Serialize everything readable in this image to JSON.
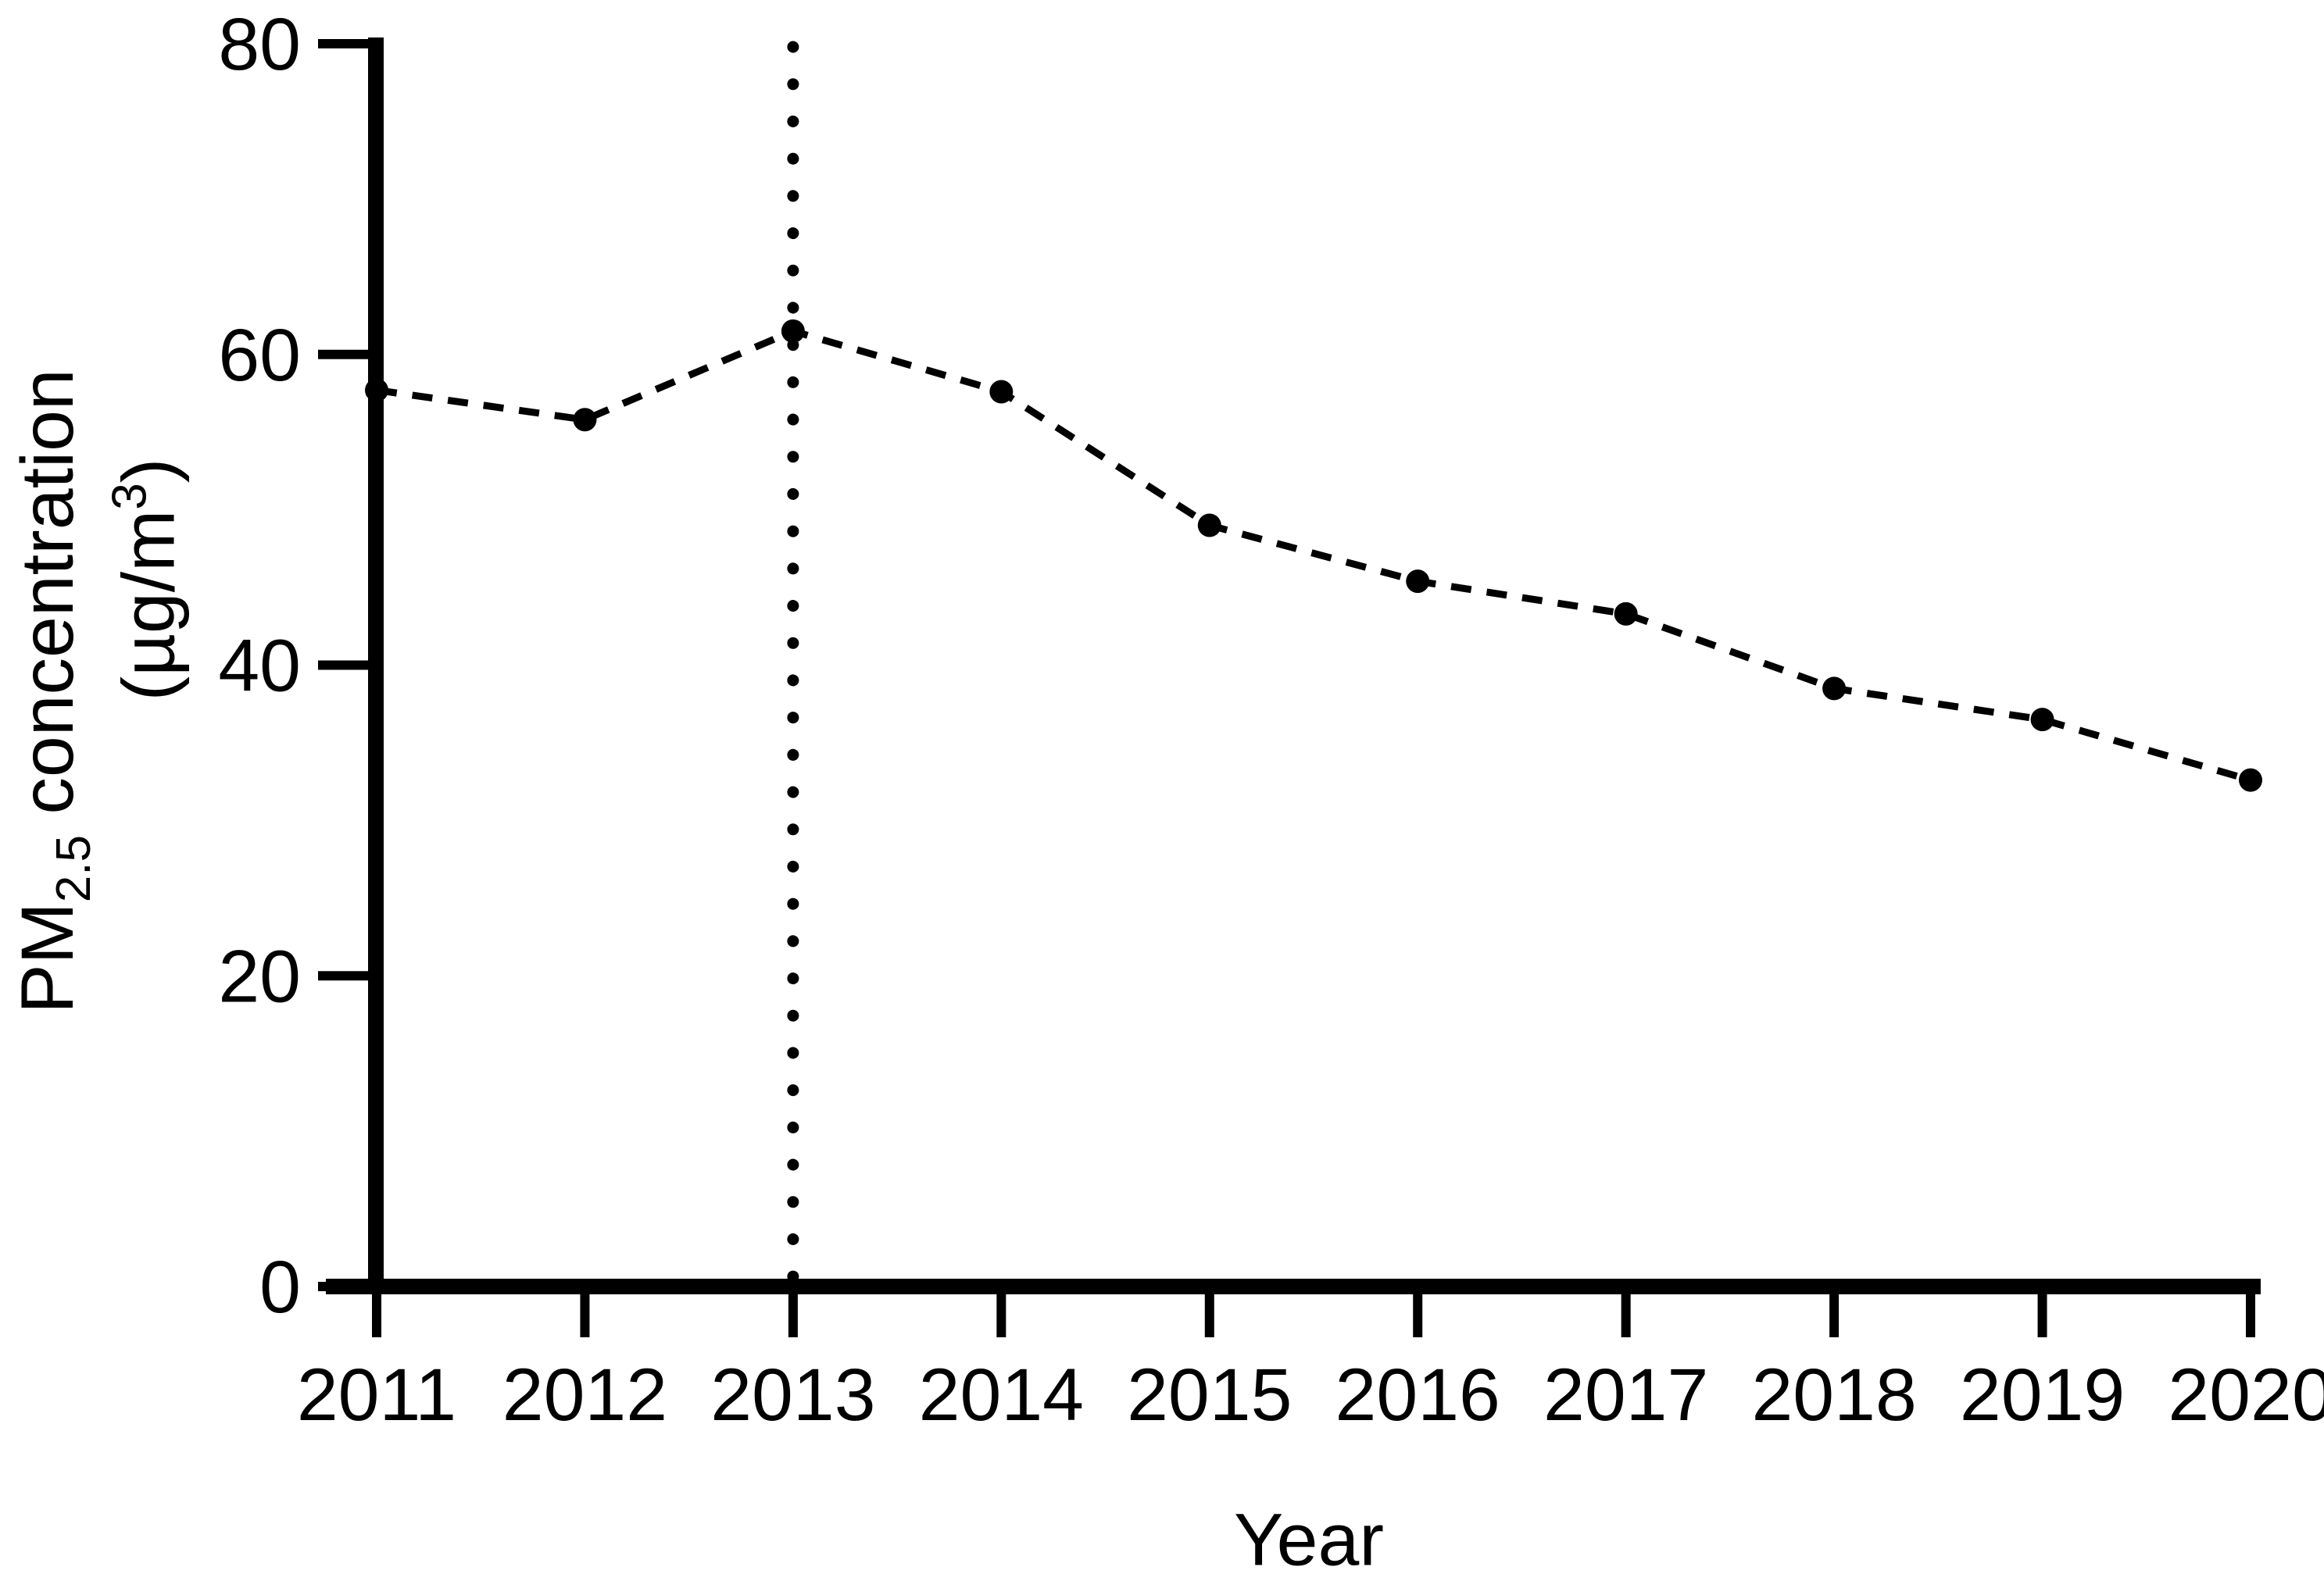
{
  "background": "#ffffff",
  "ink_color": "#000000",
  "x_axis_title": "Year",
  "y_axis_title": {
    "prefix": "PM",
    "sub": "2.5",
    "suffix": " concentration"
  },
  "y_axis_unit": {
    "prefix": "(µg/m",
    "sup": "3",
    "suffix": ")"
  },
  "chart_data": {
    "type": "line",
    "title": "",
    "xlabel": "Year",
    "ylabel": "PM2.5 concentration (µg/m³)",
    "categories": [
      "2011",
      "2012",
      "2013",
      "2014",
      "2015",
      "2016",
      "2017",
      "2018",
      "2019",
      "2020"
    ],
    "series": [
      {
        "name": "PM2.5 concentration",
        "values": [
          57.7,
          55.8,
          61.5,
          57.6,
          49.0,
          45.4,
          43.3,
          38.5,
          36.5,
          32.6
        ],
        "line_style": "dashed",
        "marker": "filled-circle",
        "color": "#000000"
      }
    ],
    "ylim": [
      0,
      80
    ],
    "yticks": [
      0,
      20,
      40,
      60,
      80
    ],
    "grid": false,
    "legend_position": "none",
    "annotations": [
      {
        "type": "vertical-dotted-line",
        "x": "2013"
      }
    ]
  }
}
